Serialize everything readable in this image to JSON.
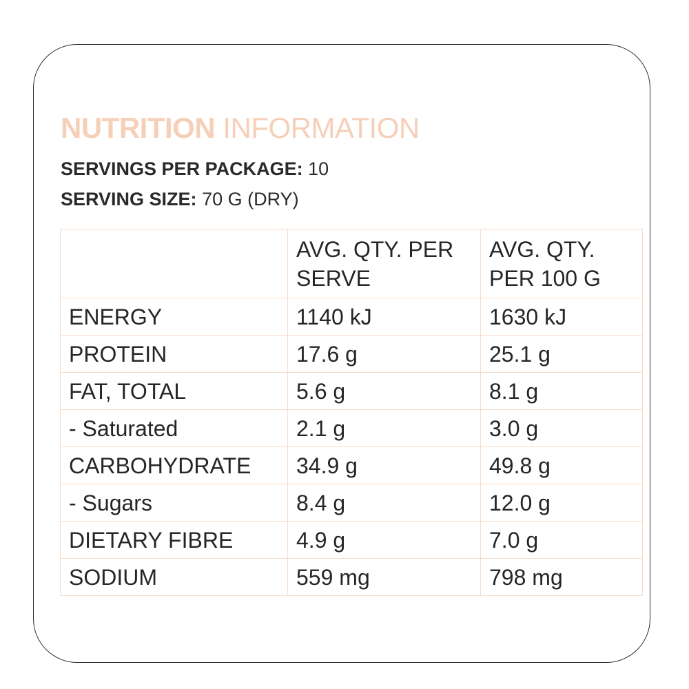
{
  "title": {
    "bold": "NUTRITION",
    "light": "INFORMATION"
  },
  "servings": {
    "label": "SERVINGS PER PACKAGE:",
    "value": "10"
  },
  "serving_size": {
    "label": "SERVING SIZE:",
    "value": "70 G (DRY)"
  },
  "table": {
    "headers": [
      "",
      "AVG. QTY. PER SERVE",
      "AVG. QTY. PER 100 G"
    ],
    "rows": [
      [
        "ENERGY",
        "1140 kJ",
        "1630 kJ"
      ],
      [
        "PROTEIN",
        "17.6 g",
        "25.1 g"
      ],
      [
        "FAT, TOTAL",
        "5.6 g",
        "8.1 g"
      ],
      [
        "- Saturated",
        "2.1 g",
        "3.0 g"
      ],
      [
        "CARBOHYDRATE",
        "34.9 g",
        "49.8 g"
      ],
      [
        "- Sugars",
        "8.4 g",
        "12.0 g"
      ],
      [
        "DIETARY FIBRE",
        "4.9 g",
        "7.0 g"
      ],
      [
        "SODIUM",
        "559 mg",
        "798 mg"
      ]
    ]
  },
  "colors": {
    "title": "#f6cfb8",
    "table_border": "#f7dccb",
    "text": "#2a2a2a",
    "card_border": "#2b2b2b"
  }
}
